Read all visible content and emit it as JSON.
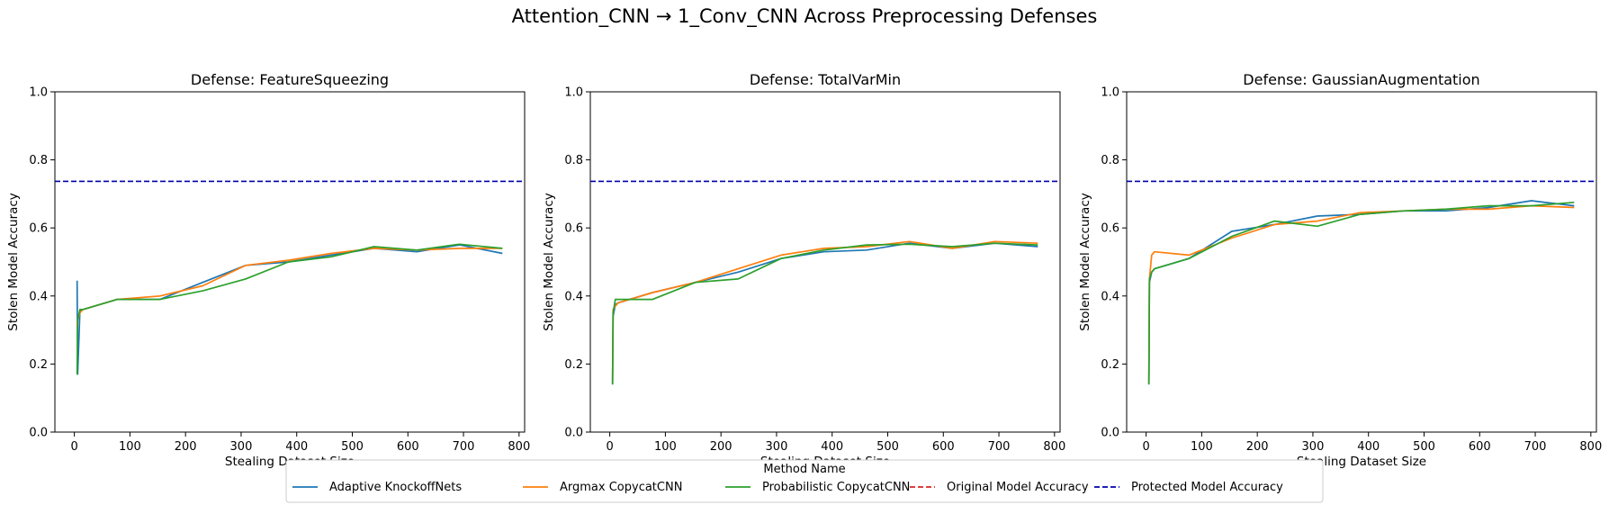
{
  "figure": {
    "title": "Attention_CNN → 1_Conv_CNN Across Preprocessing Defenses"
  },
  "legend": {
    "title": "Method Name",
    "placement": "bottom-center",
    "entries": [
      {
        "label": "Adaptive KnockoffNets",
        "color": "#1f77b4",
        "style": "solid"
      },
      {
        "label": "Argmax CopycatCNN",
        "color": "#ff7f0e",
        "style": "solid"
      },
      {
        "label": "Probabilistic CopycatCNN",
        "color": "#2ca02c",
        "style": "solid"
      },
      {
        "label": "Original Model Accuracy",
        "color": "#d62728",
        "style": "dashed"
      },
      {
        "label": "Protected Model Accuracy",
        "color": "#0000aa",
        "style": "dashed"
      }
    ]
  },
  "chart_data": [
    {
      "type": "line",
      "title": "Defense: FeatureSqueezing",
      "xlabel": "Stealing Dataset Size",
      "ylabel": "Stolen Model Accuracy",
      "xlim": [
        -35,
        810
      ],
      "ylim": [
        0,
        1
      ],
      "xticks": [
        0,
        100,
        200,
        300,
        400,
        500,
        600,
        700,
        800
      ],
      "yticks": [
        0.0,
        0.2,
        0.4,
        0.6,
        0.8,
        1.0
      ],
      "grid": false,
      "hlines": [
        {
          "name": "Protected Model Accuracy",
          "y": 0.737,
          "color": "#0000aa"
        }
      ],
      "series": [
        {
          "name": "Adaptive KnockoffNets",
          "color": "#1f77b4",
          "x": [
            5,
            6,
            10,
            15,
            77,
            154,
            231,
            308,
            385,
            462,
            539,
            616,
            693,
            770
          ],
          "y": [
            0.445,
            0.17,
            0.355,
            0.36,
            0.39,
            0.39,
            0.44,
            0.49,
            0.5,
            0.52,
            0.54,
            0.53,
            0.55,
            0.525
          ]
        },
        {
          "name": "Argmax CopycatCNN",
          "color": "#ff7f0e",
          "x": [
            5,
            6,
            10,
            15,
            77,
            154,
            231,
            308,
            385,
            462,
            539,
            616,
            693,
            770
          ],
          "y": [
            0.31,
            0.33,
            0.35,
            0.36,
            0.39,
            0.4,
            0.43,
            0.49,
            0.505,
            0.525,
            0.54,
            0.535,
            0.54,
            0.54
          ]
        },
        {
          "name": "Probabilistic CopycatCNN",
          "color": "#2ca02c",
          "x": [
            5,
            6,
            10,
            15,
            77,
            154,
            231,
            308,
            385,
            462,
            539,
            616,
            693,
            770
          ],
          "y": [
            0.17,
            0.33,
            0.36,
            0.36,
            0.39,
            0.39,
            0.415,
            0.45,
            0.5,
            0.515,
            0.545,
            0.535,
            0.552,
            0.54
          ]
        }
      ]
    },
    {
      "type": "line",
      "title": "Defense: TotalVarMin",
      "xlabel": "Stealing Dataset Size",
      "ylabel": "Stolen Model Accuracy",
      "xlim": [
        -35,
        810
      ],
      "ylim": [
        0,
        1
      ],
      "xticks": [
        0,
        100,
        200,
        300,
        400,
        500,
        600,
        700,
        800
      ],
      "yticks": [
        0.0,
        0.2,
        0.4,
        0.6,
        0.8,
        1.0
      ],
      "grid": false,
      "hlines": [
        {
          "name": "Protected Model Accuracy",
          "y": 0.737,
          "color": "#0000aa"
        }
      ],
      "series": [
        {
          "name": "Adaptive KnockoffNets",
          "color": "#1f77b4",
          "x": [
            5,
            6,
            10,
            15,
            77,
            154,
            231,
            308,
            385,
            462,
            539,
            616,
            693,
            770
          ],
          "y": [
            0.14,
            0.34,
            0.375,
            0.38,
            0.41,
            0.44,
            0.47,
            0.51,
            0.53,
            0.535,
            0.555,
            0.54,
            0.555,
            0.545
          ]
        },
        {
          "name": "Argmax CopycatCNN",
          "color": "#ff7f0e",
          "x": [
            5,
            6,
            10,
            15,
            77,
            154,
            231,
            308,
            385,
            462,
            539,
            616,
            693,
            770
          ],
          "y": [
            0.15,
            0.36,
            0.37,
            0.38,
            0.41,
            0.44,
            0.48,
            0.52,
            0.54,
            0.545,
            0.56,
            0.54,
            0.56,
            0.555
          ]
        },
        {
          "name": "Probabilistic CopycatCNN",
          "color": "#2ca02c",
          "x": [
            5,
            6,
            10,
            15,
            77,
            154,
            231,
            308,
            385,
            462,
            539,
            616,
            693,
            770
          ],
          "y": [
            0.14,
            0.35,
            0.39,
            0.39,
            0.39,
            0.44,
            0.45,
            0.51,
            0.535,
            0.55,
            0.552,
            0.545,
            0.555,
            0.55
          ]
        }
      ]
    },
    {
      "type": "line",
      "title": "Defense: GaussianAugmentation",
      "xlabel": "Stealing Dataset Size",
      "ylabel": "Stolen Model Accuracy",
      "xlim": [
        -35,
        810
      ],
      "ylim": [
        0,
        1
      ],
      "xticks": [
        0,
        100,
        200,
        300,
        400,
        500,
        600,
        700,
        800
      ],
      "yticks": [
        0.0,
        0.2,
        0.4,
        0.6,
        0.8,
        1.0
      ],
      "grid": false,
      "hlines": [
        {
          "name": "Protected Model Accuracy",
          "y": 0.737,
          "color": "#0000aa"
        }
      ],
      "series": [
        {
          "name": "Adaptive KnockoffNets",
          "color": "#1f77b4",
          "x": [
            5,
            6,
            10,
            15,
            77,
            154,
            231,
            308,
            385,
            462,
            539,
            616,
            693,
            770
          ],
          "y": [
            0.14,
            0.44,
            0.47,
            0.48,
            0.51,
            0.59,
            0.61,
            0.635,
            0.64,
            0.65,
            0.65,
            0.66,
            0.68,
            0.665
          ]
        },
        {
          "name": "Argmax CopycatCNN",
          "color": "#ff7f0e",
          "x": [
            5,
            6,
            10,
            15,
            77,
            154,
            231,
            308,
            385,
            462,
            539,
            616,
            693,
            770
          ],
          "y": [
            0.15,
            0.45,
            0.52,
            0.53,
            0.52,
            0.57,
            0.61,
            0.62,
            0.645,
            0.65,
            0.655,
            0.655,
            0.665,
            0.66
          ]
        },
        {
          "name": "Probabilistic CopycatCNN",
          "color": "#2ca02c",
          "x": [
            5,
            6,
            10,
            15,
            77,
            154,
            231,
            308,
            385,
            462,
            539,
            616,
            693,
            770
          ],
          "y": [
            0.14,
            0.45,
            0.47,
            0.48,
            0.51,
            0.575,
            0.62,
            0.605,
            0.64,
            0.65,
            0.655,
            0.665,
            0.665,
            0.675
          ]
        }
      ]
    }
  ]
}
